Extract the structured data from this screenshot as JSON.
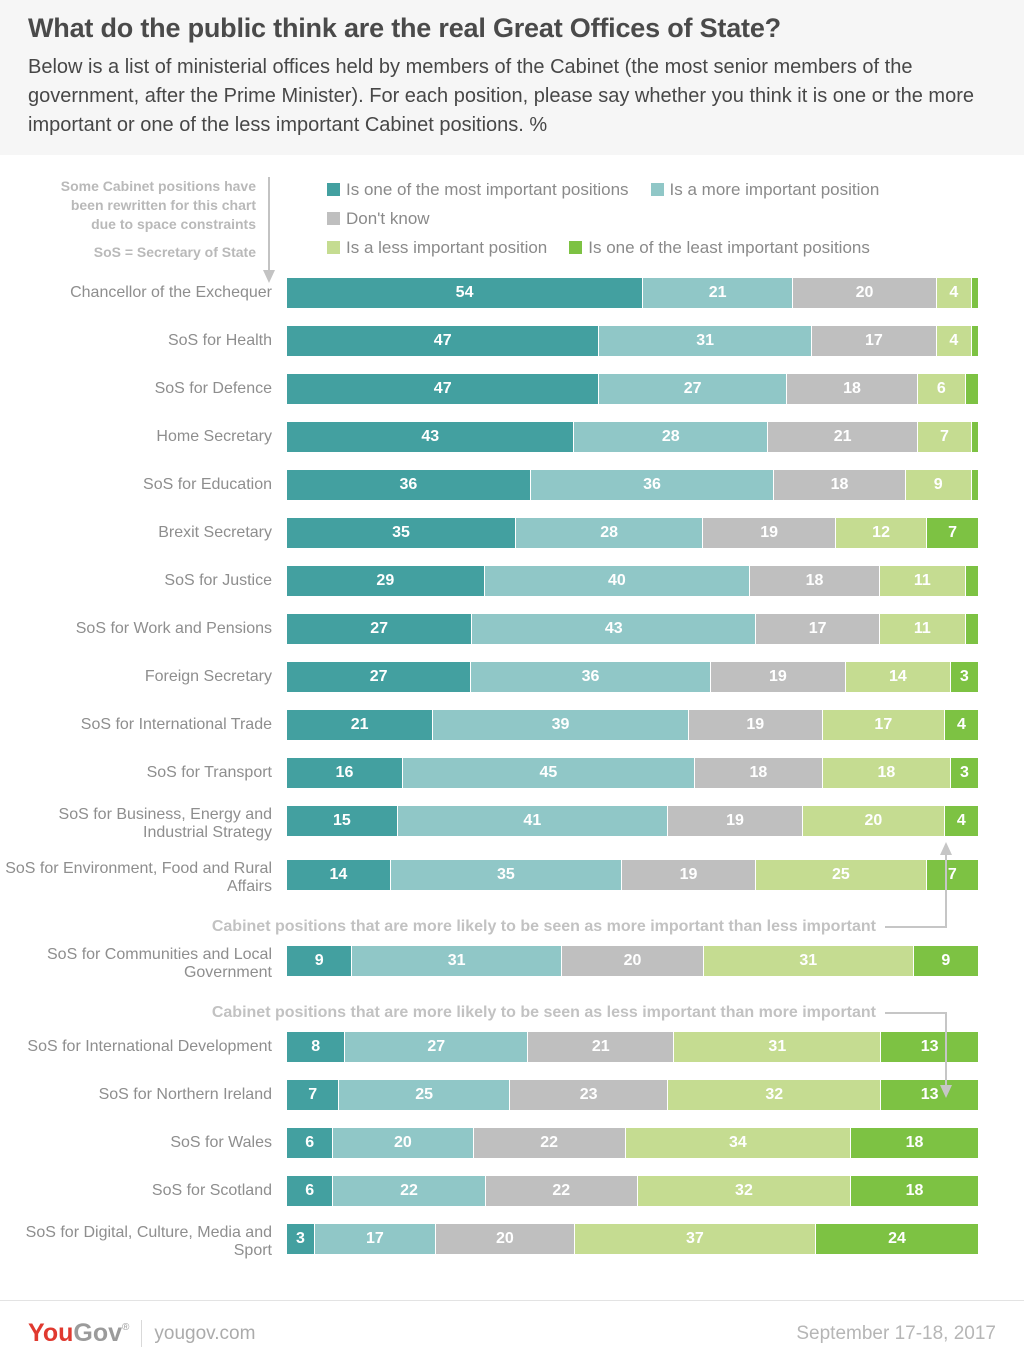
{
  "header": {
    "title": "What do the public think are the real Great Offices of State?",
    "subtitle": "Below is a list of ministerial offices held by members of the Cabinet (the most senior members of the government, after the Prime Minister). For each position, please say whether you think it is one or the more important or one of the less important Cabinet positions. %"
  },
  "note": {
    "lines": [
      "Some Cabinet positions have",
      "been rewritten for this chart",
      "due to space constraints"
    ],
    "abbreviation": "SoS = Secretary of State"
  },
  "legend": {
    "rows": [
      [
        {
          "label": "Is one of the most important positions",
          "color": "#43a0a0"
        },
        {
          "label": "Is a more important position",
          "color": "#90c7c7"
        }
      ],
      [
        {
          "label": "Don't know",
          "color": "#bfbfbf"
        }
      ],
      [
        {
          "label": "Is a less important position",
          "color": "#c5dc91"
        },
        {
          "label": "Is one of the least important positions",
          "color": "#7dc243"
        }
      ]
    ]
  },
  "chart_data": {
    "type": "bar",
    "orientation": "horizontal",
    "stacked": true,
    "unit": "%",
    "xlim": [
      0,
      100
    ],
    "grid": false,
    "legend_position": "top",
    "label_min_value": 3,
    "colors": [
      "#43a0a0",
      "#90c7c7",
      "#bfbfbf",
      "#c5dc91",
      "#7dc243"
    ],
    "categories": [
      "Chancellor of the Exchequer",
      "SoS for Health",
      "SoS for Defence",
      "Home Secretary",
      "SoS for Education",
      "Brexit Secretary",
      "SoS for Justice",
      "SoS for Work and Pensions",
      "Foreign Secretary",
      "SoS for International Trade",
      "SoS for Transport",
      "SoS for Business, Energy and Industrial Strategy",
      "SoS for Environment, Food and Rural Affairs",
      "SoS for Communities and Local Government",
      "SoS for International Development",
      "SoS for Northern Ireland",
      "SoS for Wales",
      "SoS for Scotland",
      "SoS for Digital, Culture, Media and Sport"
    ],
    "series": [
      {
        "name": "Is one of the most important positions",
        "values": [
          54,
          47,
          47,
          43,
          36,
          35,
          29,
          27,
          27,
          21,
          16,
          15,
          14,
          9,
          8,
          7,
          6,
          6,
          3
        ]
      },
      {
        "name": "Is a more important position",
        "values": [
          21,
          31,
          27,
          28,
          36,
          28,
          40,
          43,
          36,
          39,
          45,
          41,
          35,
          31,
          27,
          25,
          20,
          22,
          17
        ]
      },
      {
        "name": "Don't know",
        "values": [
          20,
          17,
          18,
          21,
          18,
          19,
          18,
          17,
          19,
          19,
          18,
          19,
          19,
          20,
          21,
          23,
          22,
          22,
          20
        ]
      },
      {
        "name": "Is a less important position",
        "values": [
          4,
          4,
          6,
          7,
          9,
          12,
          11,
          11,
          14,
          17,
          18,
          20,
          25,
          31,
          31,
          32,
          34,
          32,
          37
        ]
      },
      {
        "name": "Is one of the least important positions",
        "values": [
          1,
          1,
          2,
          1,
          1,
          7,
          2,
          2,
          3,
          4,
          3,
          4,
          7,
          9,
          13,
          13,
          18,
          18,
          24
        ]
      }
    ],
    "annotations": [
      {
        "after_index": 12,
        "arrow": "up",
        "text": "Cabinet positions that are more likely to be seen as more important than less important"
      },
      {
        "after_index": 13,
        "arrow": "down",
        "text": "Cabinet positions that are more likely to be seen as less important than more important"
      }
    ]
  },
  "footer": {
    "logo_you": "You",
    "logo_gov": "Gov",
    "logo_reg": "®",
    "site": "yougov.com",
    "date": "September 17-18, 2017"
  }
}
